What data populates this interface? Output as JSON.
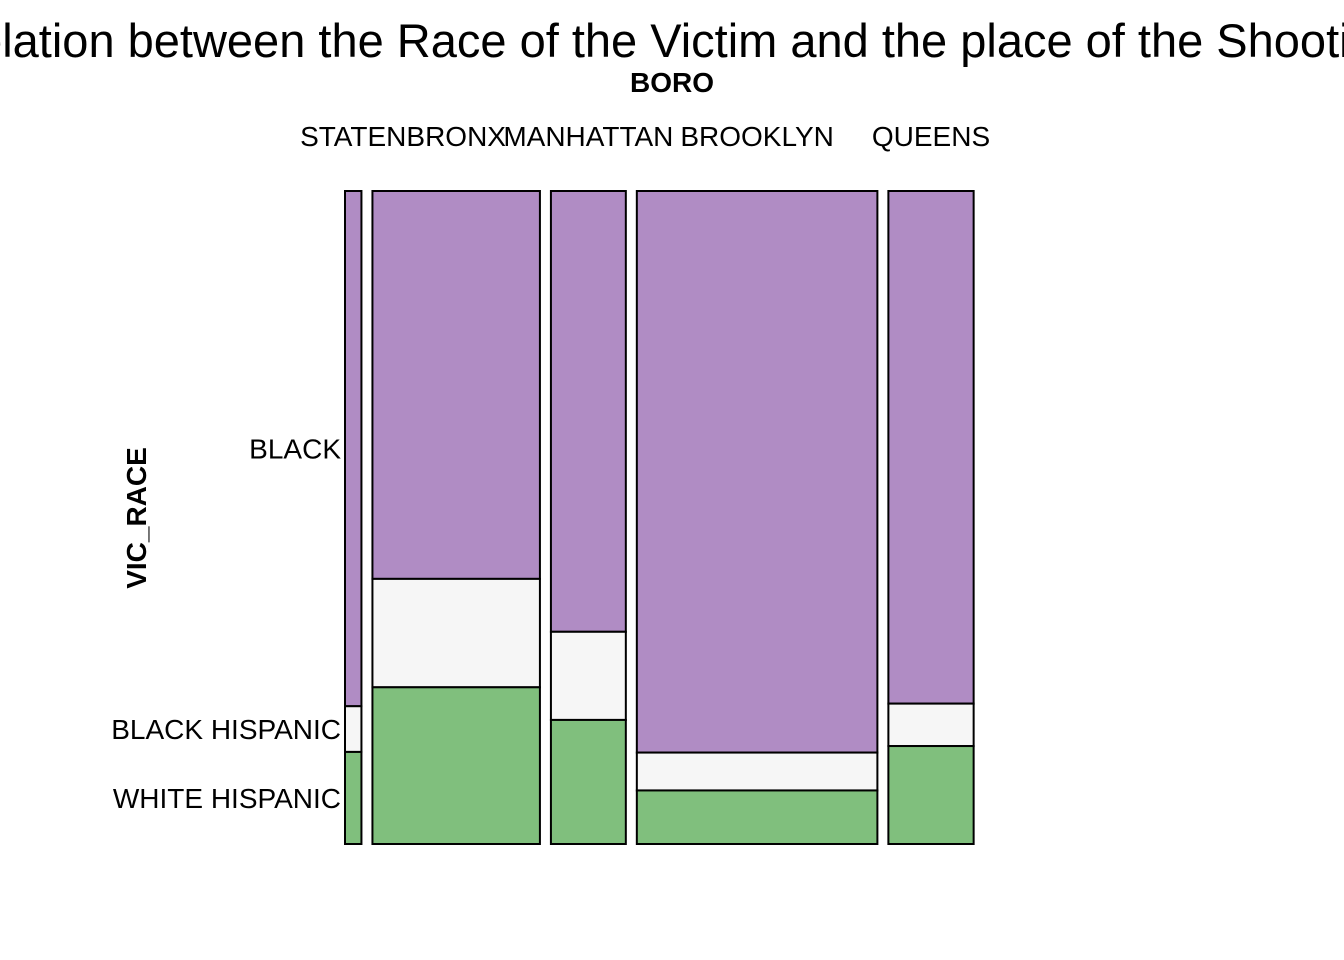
{
  "chart_data": {
    "type": "mosaic",
    "title": "Relation between the Race of the Victim and the place of the Shooting",
    "x_variable": "BORO",
    "y_variable": "VIC_RACE",
    "categories": [
      "STATEN",
      "BRONX",
      "MANHATTAN",
      "BROOKLYN",
      "QUEENS"
    ],
    "column_shares": [
      0.027,
      0.275,
      0.123,
      0.395,
      0.14
    ],
    "levels": [
      "BLACK",
      "BLACK HISPANIC",
      "WHITE HISPANIC"
    ],
    "series": [
      {
        "name": "BLACK",
        "color": "#b08cc4",
        "values": [
          0.789,
          0.594,
          0.675,
          0.86,
          0.785
        ]
      },
      {
        "name": "BLACK HISPANIC",
        "color": "#f6f6f6",
        "values": [
          0.07,
          0.166,
          0.135,
          0.058,
          0.065
        ]
      },
      {
        "name": "WHITE HISPANIC",
        "color": "#80bf7d",
        "values": [
          0.141,
          0.24,
          0.19,
          0.082,
          0.15
        ]
      }
    ]
  }
}
